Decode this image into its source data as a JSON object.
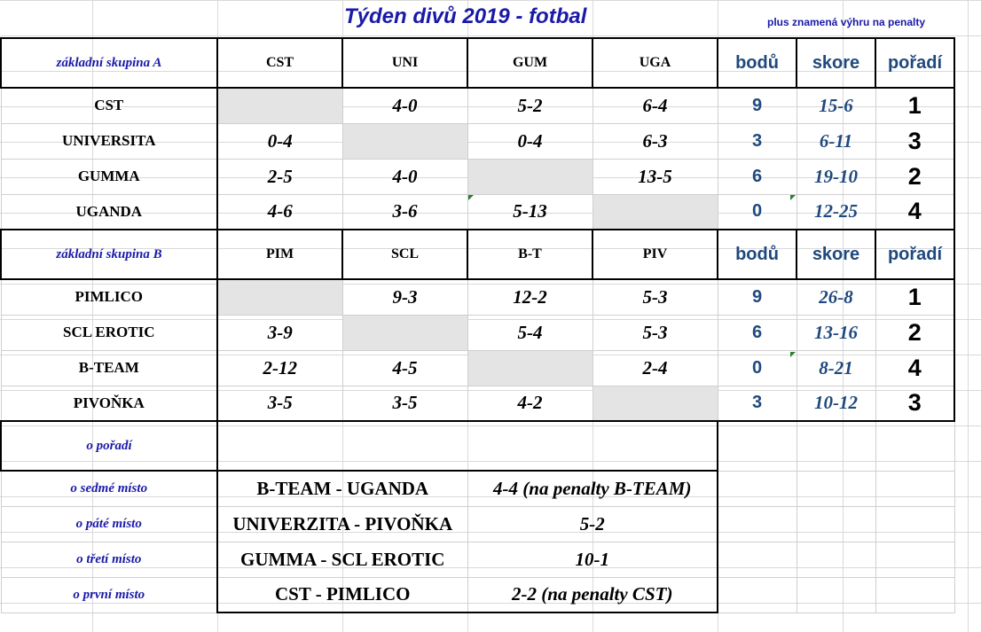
{
  "title": "Týden divů 2019 - fotbal",
  "note": "plus znamená výhru na penalty",
  "stats_headers": {
    "points": "bodů",
    "score": "skore",
    "rank": "pořadí"
  },
  "group_a": {
    "label": "základní skupina  A",
    "cols": [
      "CST",
      "UNI",
      "GUM",
      "UGA"
    ],
    "rows": [
      {
        "team": "CST",
        "r": [
          "",
          "4-0",
          "5-2",
          "6-4"
        ],
        "points": "9",
        "score": "15-6",
        "rank": "1"
      },
      {
        "team": "UNIVERSITA",
        "r": [
          "0-4",
          "",
          "0-4",
          "6-3"
        ],
        "points": "3",
        "score": "6-11",
        "rank": "3"
      },
      {
        "team": "GUMMA",
        "r": [
          "2-5",
          "4-0",
          "",
          "13-5"
        ],
        "points": "6",
        "score": "19-10",
        "rank": "2"
      },
      {
        "team": "UGANDA",
        "r": [
          "4-6",
          "3-6",
          "5-13",
          ""
        ],
        "points": "0",
        "score": "12-25",
        "rank": "4"
      }
    ]
  },
  "group_b": {
    "label": "základní skupina  B",
    "cols": [
      "PIM",
      "SCL",
      "B-T",
      "PIV"
    ],
    "rows": [
      {
        "team": "PIMLICO",
        "r": [
          "",
          "9-3",
          "12-2",
          "5-3"
        ],
        "points": "9",
        "score": "26-8",
        "rank": "1"
      },
      {
        "team": "SCL EROTIC",
        "r": [
          "3-9",
          "",
          "5-4",
          "5-3"
        ],
        "points": "6",
        "score": "13-16",
        "rank": "2"
      },
      {
        "team": "B-TEAM",
        "r": [
          "2-12",
          "4-5",
          "",
          "2-4"
        ],
        "points": "0",
        "score": "8-21",
        "rank": "4"
      },
      {
        "team": "PIVOŇKA",
        "r": [
          "3-5",
          "3-5",
          "4-2",
          ""
        ],
        "points": "3",
        "score": "10-12",
        "rank": "3"
      }
    ]
  },
  "placement": {
    "label": "o pořadí",
    "matches": [
      {
        "label": "o sedmé místo",
        "match": "B-TEAM - UGANDA",
        "result": "4-4 (na penalty B-TEAM)"
      },
      {
        "label": "o páté místo",
        "match": "UNIVERZITA - PIVOŇKA",
        "result": "5-2"
      },
      {
        "label": "o třetí místo",
        "match": "GUMMA - SCL EROTIC",
        "result": "10-1"
      },
      {
        "label": "o první místo",
        "match": "CST - PIMLICO",
        "result": "2-2 (na penalty CST)"
      }
    ]
  }
}
